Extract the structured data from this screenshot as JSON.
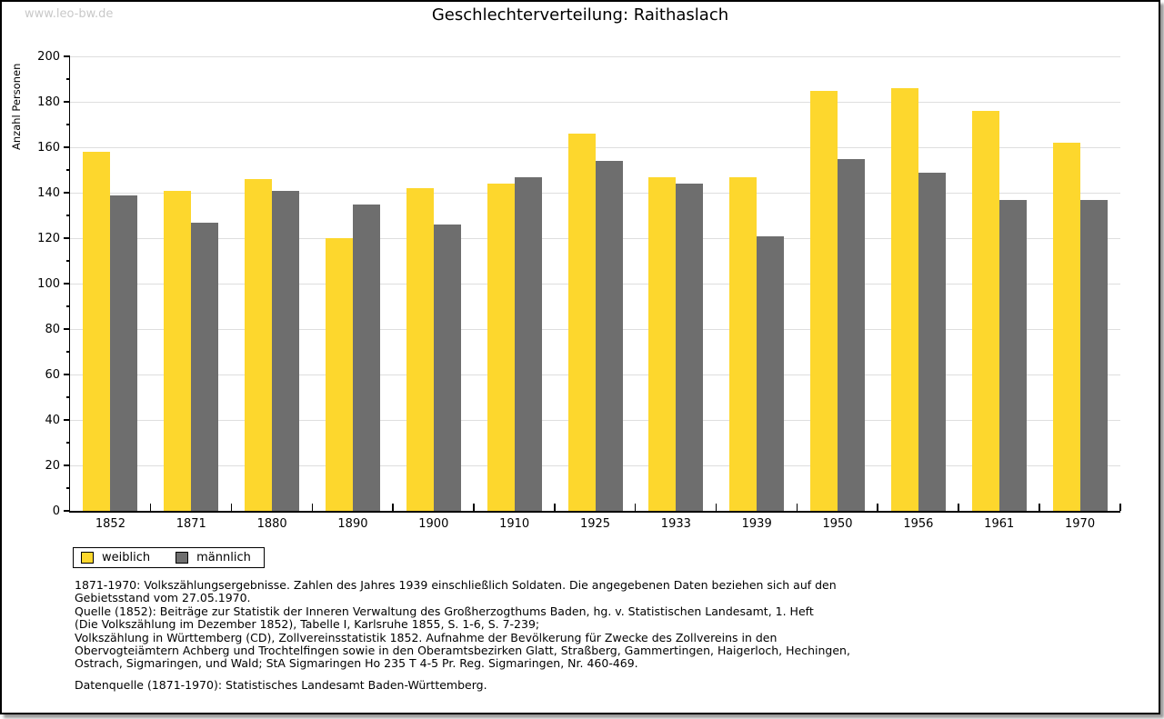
{
  "watermark": "www.leo-bw.de",
  "chart_data": {
    "type": "bar",
    "title": "Geschlechterverteilung: Raithaslach",
    "xlabel": "",
    "ylabel": "Anzahl Personen",
    "ylim": [
      0,
      200
    ],
    "ytick_step": 20,
    "yminor_step": 10,
    "grid": true,
    "legend_position": "bottom-left",
    "categories": [
      "1852",
      "1871",
      "1880",
      "1890",
      "1900",
      "1910",
      "1925",
      "1933",
      "1939",
      "1950",
      "1956",
      "1961",
      "1970"
    ],
    "series": [
      {
        "name": "weiblich",
        "color": "#FDD72D",
        "values": [
          158,
          141,
          146,
          120,
          142,
          144,
          166,
          147,
          147,
          185,
          186,
          176,
          162
        ]
      },
      {
        "name": "männlich",
        "color": "#6E6E6E",
        "values": [
          139,
          127,
          141,
          135,
          126,
          147,
          154,
          144,
          121,
          155,
          149,
          137,
          137
        ]
      }
    ]
  },
  "notes": {
    "paragraph1": [
      "1871-1970: Volkszählungsergebnisse. Zahlen des Jahres 1939 einschließlich Soldaten. Die angegebenen Daten beziehen sich auf den",
      "Gebietsstand vom 27.05.1970.",
      "Quelle (1852): Beiträge zur Statistik der Inneren Verwaltung des Großherzogthums Baden, hg. v. Statistischen Landesamt, 1. Heft",
      "(Die Volkszählung im Dezember 1852), Tabelle I, Karlsruhe 1855, S. 1-6, S. 7-239;",
      "Volkszählung in Württemberg (CD), Zollvereinsstatistik 1852. Aufnahme der Bevölkerung für Zwecke des Zollvereins in den",
      "Obervogteiämtern Achberg und Trochtelfingen sowie in den Oberamtsbezirken Glatt, Straßberg, Gammertingen, Haigerloch, Hechingen,",
      "Ostrach, Sigmaringen, und Wald; StA Sigmaringen Ho 235 T 4-5 Pr. Reg. Sigmaringen, Nr. 460-469."
    ],
    "paragraph2": [
      "Datenquelle (1871-1970): Statistisches Landesamt Baden-Württemberg."
    ]
  },
  "colors": {
    "weiblich": "#FDD72D",
    "männlich": "#6E6E6E",
    "gridline": "#DEDEDE",
    "axis": "#000000",
    "watermark": "#C9C9C9",
    "background": "#FFFFFF"
  }
}
